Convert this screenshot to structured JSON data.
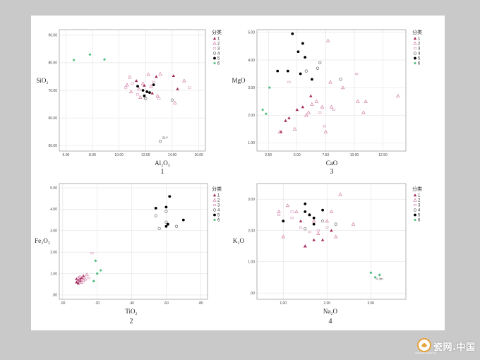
{
  "colors": {
    "g1": "#a3275a",
    "g2": "#cc6e98",
    "g3": "#d99ac0",
    "g4": "#555555",
    "g5": "#000000",
    "g6": "#2fb36b",
    "grid": "#dddddd",
    "frame": "#666666"
  },
  "legend": {
    "title": "分类",
    "items": [
      {
        "label": "1",
        "symbol": "triangle-filled",
        "color": "#a3275a"
      },
      {
        "label": "2",
        "symbol": "triangle-open",
        "color": "#cc6e98"
      },
      {
        "label": "3",
        "symbol": "square-open",
        "color": "#d99ac0"
      },
      {
        "label": "4",
        "symbol": "circle-open",
        "color": "#555555"
      },
      {
        "label": "5",
        "symbol": "circle-filled",
        "color": "#000000"
      },
      {
        "label": "6",
        "symbol": "star",
        "color": "#2fb36b"
      }
    ]
  },
  "watermark": {
    "text": "瓷网.中国",
    "sub": "CERAMICSCHINA.CN"
  },
  "chart_data": [
    {
      "type": "scatter",
      "panel": "1",
      "xlabel": "Al₂O₃",
      "ylabel": "SiO₂",
      "xlim": [
        5.5,
        16.5
      ],
      "ylim": [
        48,
        92
      ],
      "xticks": [
        {
          "v": 6,
          "t": "6.00"
        },
        {
          "v": 8,
          "t": "8.00"
        },
        {
          "v": 10,
          "t": "10.00"
        },
        {
          "v": 12,
          "t": "12.00"
        },
        {
          "v": 14,
          "t": "14.00"
        },
        {
          "v": 16,
          "t": "16.00"
        }
      ],
      "yticks": [
        {
          "v": 50,
          "t": "50.00"
        },
        {
          "v": 60,
          "t": "60.00"
        },
        {
          "v": 70,
          "t": "70.00"
        },
        {
          "v": 80,
          "t": "80.00"
        },
        {
          "v": 90,
          "t": "90.00"
        }
      ],
      "annotations": [
        {
          "x": 13.2,
          "y": 52.5,
          "text": "21Y"
        }
      ],
      "series": [
        {
          "group": 1,
          "points": [
            [
              11.3,
              73.5
            ],
            [
              12.8,
              75.0
            ],
            [
              14.1,
              75.3
            ],
            [
              14.4,
              70.5
            ],
            [
              11.9,
              71.8
            ],
            [
              12.5,
              69.0
            ]
          ]
        },
        {
          "group": 2,
          "points": [
            [
              10.8,
              74.8
            ],
            [
              11.8,
              72.5
            ],
            [
              12.2,
              75.8
            ],
            [
              13.1,
              76.0
            ],
            [
              14.9,
              73.5
            ],
            [
              11.5,
              70.5
            ],
            [
              12.9,
              68.0
            ],
            [
              10.6,
              72.0
            ],
            [
              11.6,
              67.5
            ],
            [
              14.2,
              65.5
            ],
            [
              10.9,
              69.5
            ],
            [
              12.4,
              71.5
            ]
          ]
        },
        {
          "group": 3,
          "points": [
            [
              10.5,
              71.0
            ],
            [
              11.0,
              72.5
            ],
            [
              15.3,
              71.0
            ],
            [
              12.6,
              73.0
            ],
            [
              11.4,
              68.5
            ],
            [
              13.0,
              67.0
            ]
          ]
        },
        {
          "group": 4,
          "points": [
            [
              12.0,
              67.0
            ],
            [
              14.0,
              66.5
            ],
            [
              13.1,
              51.5
            ]
          ]
        },
        {
          "group": 5,
          "points": [
            [
              11.4,
              71.5
            ],
            [
              11.8,
              70.0
            ],
            [
              12.1,
              69.5
            ],
            [
              12.3,
              69.2
            ],
            [
              12.6,
              72.0
            ],
            [
              11.9,
              68.0
            ]
          ]
        },
        {
          "group": 6,
          "points": [
            [
              6.6,
              81.0
            ],
            [
              7.8,
              83.0
            ],
            [
              8.9,
              81.2
            ]
          ]
        }
      ]
    },
    {
      "type": "scatter",
      "panel": "3",
      "xlabel": "CaO",
      "ylabel": "MgO",
      "xlim": [
        1.5,
        14.5
      ],
      "ylim": [
        0.7,
        5.1
      ],
      "xticks": [
        {
          "v": 2.5,
          "t": "2.50"
        },
        {
          "v": 5,
          "t": "5.00"
        },
        {
          "v": 7.5,
          "t": "7.50"
        },
        {
          "v": 10,
          "t": "10.00"
        },
        {
          "v": 12.5,
          "t": "12.50"
        }
      ],
      "yticks": [
        {
          "v": 1,
          "t": "1.00"
        },
        {
          "v": 2,
          "t": "2.00"
        },
        {
          "v": 3,
          "t": "3.00"
        },
        {
          "v": 4,
          "t": "4.00"
        },
        {
          "v": 5,
          "t": "5.00"
        }
      ],
      "series": [
        {
          "group": 1,
          "points": [
            [
              3.6,
              1.4
            ],
            [
              4.3,
              1.9
            ],
            [
              4.0,
              1.8
            ],
            [
              5.0,
              2.2
            ],
            [
              6.2,
              2.7
            ],
            [
              5.5,
              2.3
            ]
          ]
        },
        {
          "group": 2,
          "points": [
            [
              7.7,
              4.7
            ],
            [
              6.7,
              2.5
            ],
            [
              7.2,
              2.3
            ],
            [
              8.0,
              2.3
            ],
            [
              7.5,
              1.4
            ],
            [
              3.5,
              1.4
            ],
            [
              5.8,
              2.0
            ],
            [
              6.3,
              2.4
            ],
            [
              7.9,
              3.2
            ],
            [
              9.0,
              3.0
            ],
            [
              10.8,
              2.1
            ],
            [
              11.0,
              2.5
            ],
            [
              13.8,
              2.7
            ],
            [
              10.3,
              2.5
            ],
            [
              4.8,
              1.5
            ],
            [
              6.0,
              2.1
            ]
          ]
        },
        {
          "group": 3,
          "points": [
            [
              4.3,
              3.2
            ],
            [
              7.0,
              2.1
            ],
            [
              8.2,
              2.2
            ],
            [
              10.2,
              3.5
            ],
            [
              7.4,
              1.6
            ]
          ]
        },
        {
          "group": 4,
          "points": [
            [
              5.8,
              3.6
            ],
            [
              6.8,
              3.7
            ],
            [
              7.0,
              3.9
            ],
            [
              8.8,
              3.3
            ]
          ]
        },
        {
          "group": 5,
          "points": [
            [
              3.3,
              3.6
            ],
            [
              4.2,
              3.6
            ],
            [
              4.6,
              4.95
            ],
            [
              5.1,
              4.3
            ],
            [
              5.5,
              4.6
            ],
            [
              5.7,
              4.1
            ],
            [
              6.3,
              3.3
            ],
            [
              5.3,
              3.5
            ]
          ]
        },
        {
          "group": 6,
          "points": [
            [
              2.0,
              2.2
            ],
            [
              2.3,
              2.05
            ],
            [
              2.6,
              3.0
            ]
          ]
        }
      ]
    },
    {
      "type": "scatter",
      "panel": "2",
      "xlabel": "TiO₂",
      "ylabel": "Fe₂O₃",
      "xlim": [
        -0.02,
        0.84
      ],
      "ylim": [
        -0.2,
        5.2
      ],
      "xticks": [
        {
          "v": 0,
          "t": ".00"
        },
        {
          "v": 0.2,
          "t": ".20"
        },
        {
          "v": 0.4,
          "t": ".40"
        },
        {
          "v": 0.6,
          "t": ".60"
        },
        {
          "v": 0.8,
          "t": ".80"
        }
      ],
      "yticks": [
        {
          "v": 0,
          "t": ".00"
        },
        {
          "v": 1,
          "t": "1.00"
        },
        {
          "v": 2,
          "t": "2.00"
        },
        {
          "v": 3,
          "t": "3.00"
        },
        {
          "v": 4,
          "t": "4.00"
        },
        {
          "v": 5,
          "t": "5.00"
        }
      ],
      "series": [
        {
          "group": 1,
          "points": [
            [
              0.08,
              0.6
            ],
            [
              0.09,
              0.7
            ],
            [
              0.1,
              0.75
            ],
            [
              0.09,
              0.55
            ],
            [
              0.11,
              0.8
            ],
            [
              0.12,
              0.9
            ],
            [
              0.1,
              0.65
            ],
            [
              0.08,
              0.75
            ]
          ]
        },
        {
          "group": 2,
          "points": [
            [
              0.1,
              0.85
            ],
            [
              0.12,
              0.7
            ],
            [
              0.14,
              0.95
            ],
            [
              0.09,
              0.8
            ],
            [
              0.11,
              0.6
            ],
            [
              0.13,
              0.75
            ],
            [
              0.1,
              0.7
            ]
          ]
        },
        {
          "group": 3,
          "points": [
            [
              0.17,
              1.95
            ],
            [
              0.12,
              0.85
            ],
            [
              0.15,
              0.8
            ],
            [
              0.09,
              0.7
            ]
          ]
        },
        {
          "group": 4,
          "points": [
            [
              0.54,
              3.7
            ],
            [
              0.56,
              3.1
            ],
            [
              0.6,
              3.9
            ],
            [
              0.66,
              3.2
            ],
            [
              0.6,
              3.4
            ]
          ]
        },
        {
          "group": 5,
          "points": [
            [
              0.54,
              4.05
            ],
            [
              0.6,
              4.1
            ],
            [
              0.62,
              4.6
            ],
            [
              0.6,
              3.2
            ],
            [
              0.7,
              3.5
            ],
            [
              0.61,
              3.3
            ]
          ]
        },
        {
          "group": 6,
          "points": [
            [
              0.19,
              1.6
            ],
            [
              0.22,
              1.15
            ],
            [
              0.18,
              0.65
            ],
            [
              0.2,
              1.0
            ]
          ]
        }
      ]
    },
    {
      "type": "scatter",
      "panel": "4",
      "xlabel": "Na₂O",
      "ylabel": "K₂O",
      "xlim": [
        0.4,
        3.8
      ],
      "ylim": [
        -0.2,
        3.5
      ],
      "xticks": [
        {
          "v": 1,
          "t": "1.00"
        },
        {
          "v": 2,
          "t": "2.00"
        },
        {
          "v": 3,
          "t": "3.00"
        }
      ],
      "yticks": [
        {
          "v": 0,
          "t": ".00"
        },
        {
          "v": 1,
          "t": "1.00"
        },
        {
          "v": 2,
          "t": "2.00"
        },
        {
          "v": 3,
          "t": "3.00"
        }
      ],
      "annotations": [
        {
          "x": 3.1,
          "y": 0.42,
          "text": "A 3m"
        }
      ],
      "series": [
        {
          "group": 1,
          "points": [
            [
              1.5,
              1.5
            ],
            [
              1.7,
              1.7
            ],
            [
              1.9,
              1.7
            ],
            [
              2.1,
              2.0
            ],
            [
              1.4,
              2.3
            ],
            [
              1.6,
              2.5
            ]
          ]
        },
        {
          "group": 2,
          "points": [
            [
              0.9,
              2.6
            ],
            [
              1.1,
              2.8
            ],
            [
              1.3,
              2.6
            ],
            [
              1.7,
              2.3
            ],
            [
              2.0,
              2.3
            ],
            [
              2.1,
              2.6
            ],
            [
              2.6,
              2.2
            ],
            [
              2.3,
              3.15
            ],
            [
              1.0,
              1.8
            ],
            [
              1.5,
              1.5
            ],
            [
              1.8,
              1.9
            ],
            [
              2.2,
              1.8
            ]
          ]
        },
        {
          "group": 3,
          "points": [
            [
              0.9,
              2.5
            ],
            [
              1.2,
              2.6
            ],
            [
              1.4,
              2.1
            ],
            [
              1.6,
              1.95
            ],
            [
              2.0,
              2.1
            ],
            [
              1.2,
              2.4
            ],
            [
              1.8,
              2.0
            ]
          ]
        },
        {
          "group": 4,
          "points": [
            [
              1.5,
              2.05
            ],
            [
              1.9,
              2.3
            ],
            [
              2.2,
              2.2
            ]
          ]
        },
        {
          "group": 5,
          "points": [
            [
              1.0,
              2.3
            ],
            [
              1.5,
              2.85
            ],
            [
              1.6,
              2.5
            ],
            [
              1.7,
              2.2
            ],
            [
              1.7,
              2.4
            ],
            [
              1.9,
              2.65
            ],
            [
              1.5,
              2.6
            ]
          ]
        },
        {
          "group": 6,
          "points": [
            [
              3.0,
              0.65
            ],
            [
              3.1,
              0.5
            ],
            [
              3.2,
              0.58
            ]
          ]
        }
      ]
    }
  ]
}
